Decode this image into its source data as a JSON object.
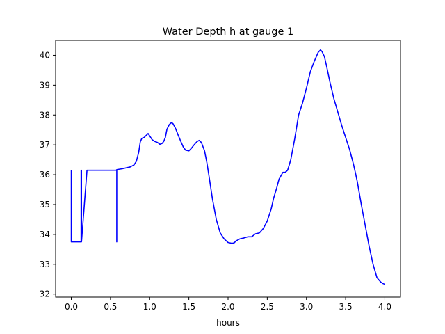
{
  "chart_data": {
    "type": "line",
    "title": "Water Depth h at gauge 1",
    "xlabel": "hours",
    "ylabel": "",
    "xlim": [
      -0.2,
      4.2
    ],
    "ylim": [
      31.9,
      40.5
    ],
    "xticks": [
      0.0,
      0.5,
      1.0,
      1.5,
      2.0,
      2.5,
      3.0,
      3.5,
      4.0
    ],
    "xtick_labels": [
      "0.0",
      "0.5",
      "1.0",
      "1.5",
      "2.0",
      "2.5",
      "3.0",
      "3.5",
      "4.0"
    ],
    "yticks": [
      32,
      33,
      34,
      35,
      36,
      37,
      38,
      39,
      40
    ],
    "ytick_labels": [
      "32",
      "33",
      "34",
      "35",
      "36",
      "37",
      "38",
      "39",
      "40"
    ],
    "grid": false,
    "series": [
      {
        "color": "#0000ff",
        "x": [
          0.0,
          0.0,
          0.005,
          0.01,
          0.05,
          0.1,
          0.12,
          0.125,
          0.125,
          0.13,
          0.13,
          0.2,
          0.3,
          0.4,
          0.5,
          0.57,
          0.58,
          0.58,
          0.58,
          0.6,
          0.65,
          0.7,
          0.75,
          0.8,
          0.83,
          0.86,
          0.88,
          0.9,
          0.93,
          0.96,
          0.98,
          1.0,
          1.03,
          1.06,
          1.1,
          1.13,
          1.16,
          1.18,
          1.2,
          1.22,
          1.25,
          1.28,
          1.3,
          1.33,
          1.36,
          1.4,
          1.43,
          1.46,
          1.5,
          1.53,
          1.56,
          1.6,
          1.63,
          1.66,
          1.7,
          1.73,
          1.76,
          1.8,
          1.85,
          1.9,
          1.95,
          2.0,
          2.05,
          2.08,
          2.1,
          2.15,
          2.2,
          2.25,
          2.3,
          2.35,
          2.4,
          2.45,
          2.5,
          2.55,
          2.58,
          2.62,
          2.65,
          2.7,
          2.73,
          2.76,
          2.8,
          2.85,
          2.9,
          2.95,
          3.0,
          3.05,
          3.1,
          3.15,
          3.18,
          3.2,
          3.23,
          3.26,
          3.3,
          3.35,
          3.4,
          3.45,
          3.5,
          3.55,
          3.6,
          3.63,
          3.65,
          3.7,
          3.75,
          3.8,
          3.85,
          3.9,
          3.95,
          3.98,
          4.0
        ],
        "y": [
          36.15,
          33.75,
          33.75,
          33.75,
          33.75,
          33.75,
          33.75,
          33.75,
          36.15,
          36.15,
          33.75,
          36.15,
          36.15,
          36.15,
          36.15,
          36.15,
          36.16,
          33.75,
          36.17,
          36.18,
          36.2,
          36.23,
          36.26,
          36.33,
          36.45,
          36.75,
          37.1,
          37.22,
          37.25,
          37.33,
          37.38,
          37.3,
          37.18,
          37.12,
          37.08,
          37.02,
          37.05,
          37.12,
          37.25,
          37.52,
          37.68,
          37.75,
          37.7,
          37.55,
          37.35,
          37.1,
          36.92,
          36.82,
          36.8,
          36.88,
          36.98,
          37.1,
          37.15,
          37.08,
          36.8,
          36.4,
          35.9,
          35.2,
          34.5,
          34.05,
          33.85,
          33.73,
          33.7,
          33.72,
          33.78,
          33.85,
          33.88,
          33.92,
          33.92,
          34.02,
          34.05,
          34.2,
          34.45,
          34.85,
          35.2,
          35.55,
          35.85,
          36.08,
          36.08,
          36.15,
          36.5,
          37.2,
          38.0,
          38.4,
          38.9,
          39.45,
          39.8,
          40.1,
          40.18,
          40.12,
          39.95,
          39.6,
          39.1,
          38.55,
          38.1,
          37.65,
          37.25,
          36.85,
          36.35,
          36.0,
          35.75,
          35.0,
          34.3,
          33.6,
          33.0,
          32.55,
          32.4,
          32.35,
          32.33
        ]
      }
    ]
  }
}
